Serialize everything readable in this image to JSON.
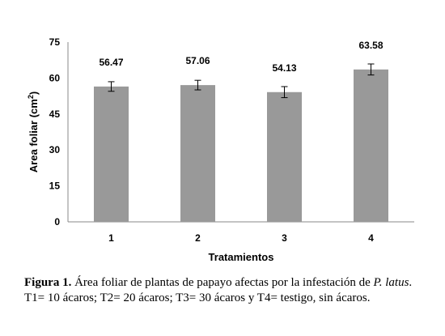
{
  "chart_data": {
    "type": "bar",
    "categories": [
      "1",
      "2",
      "3",
      "4"
    ],
    "values": [
      56.47,
      57.06,
      54.13,
      63.58
    ],
    "error": [
      2.0,
      2.0,
      2.3,
      2.3
    ],
    "data_labels": [
      "56.47",
      "57.06",
      "54.13",
      "63.58"
    ],
    "yticks": [
      "0",
      "15",
      "30",
      "45",
      "60",
      "75"
    ],
    "ylim": [
      0,
      75
    ],
    "xlabel": "Tratamientos",
    "ylabel": "Area foliar (cm",
    "ylabel_sup": "2",
    "ylabel_close": ")",
    "grid": false,
    "bar_color": "#999999"
  },
  "caption": {
    "figure_label": "Figura 1.",
    "text_before_species": "Área foliar de plantas de papayo afectas por la infestación de",
    "species": "P. latus",
    "text_after_species": ". T1= 10 ácaros; T2= 20 ácaros; T3= 30 ácaros y T4= testigo, sin ácaros."
  }
}
